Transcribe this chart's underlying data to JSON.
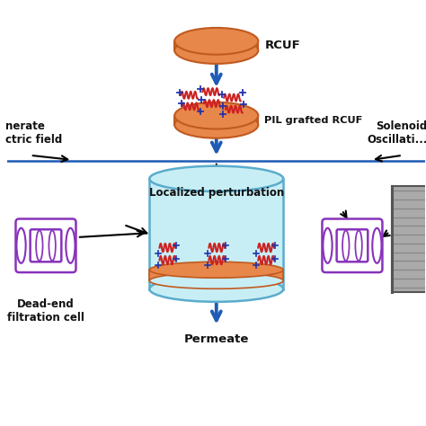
{
  "bg_color": "#ffffff",
  "rcuf_color": "#E8874A",
  "rcuf_edge": "#C05A20",
  "cylinder_fill": "#C8EEF5",
  "cylinder_edge": "#5AACCC",
  "membrane_color": "#E8874A",
  "membrane_edge": "#C05A20",
  "arrow_blue": "#1E5BB5",
  "coil_color": "#CC2222",
  "plus_color": "#2233AA",
  "chevron_color": "#4422AA",
  "toroid_color": "#8833BB",
  "solenoid_fill": "#AAAAAA",
  "solenoid_edge": "#555555",
  "text_black": "#111111",
  "label_rcuf": "RCUF",
  "label_pil": "PIL grafted RCUF",
  "label_local": "Localized perturbation",
  "label_permeate": "Permeate",
  "label_deadend": "Dead-end\nfiltration cell",
  "label_generate": "nerate\nctric field",
  "label_solenoid": "Solenoid\nOscillati...",
  "figsize": [
    4.74,
    4.74
  ],
  "dpi": 100
}
